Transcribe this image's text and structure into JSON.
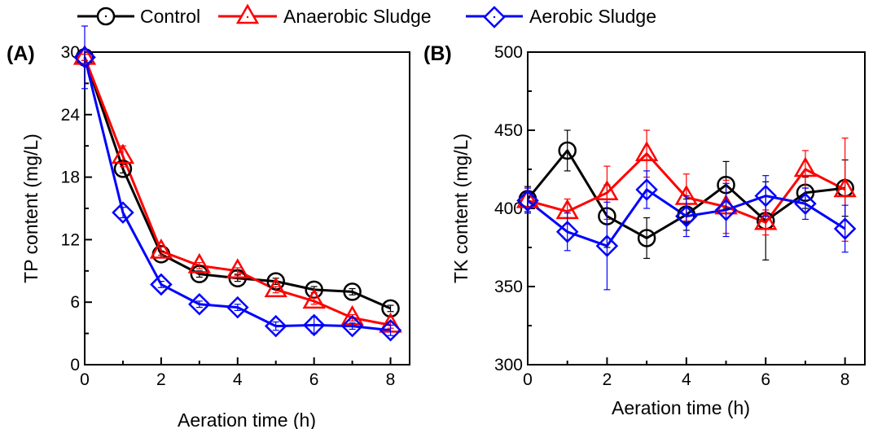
{
  "legend": {
    "items": [
      {
        "label": "Control",
        "color": "#000000",
        "marker": "circle"
      },
      {
        "label": "Anaerobic Sludge",
        "color": "#ff0000",
        "marker": "triangle"
      },
      {
        "label": "Aerobic Sludge",
        "color": "#0000ff",
        "marker": "diamond"
      }
    ],
    "placement": "top"
  },
  "chart_data": [
    {
      "type": "line",
      "panel_label": "(A)",
      "xlabel": "Aeration time (h)",
      "ylabel": "TP content (mg/L)",
      "xlim": [
        0,
        8.5
      ],
      "ylim": [
        0,
        30
      ],
      "xticks": [
        0,
        2,
        4,
        6,
        8
      ],
      "yticks": [
        0,
        6,
        12,
        18,
        24,
        30
      ],
      "grid": false,
      "x": [
        0,
        1,
        2,
        3,
        4,
        5,
        6,
        7,
        8
      ],
      "series": [
        {
          "name": "Control",
          "color": "#000000",
          "marker": "circle",
          "values": [
            29.5,
            18.8,
            10.6,
            8.7,
            8.3,
            8.0,
            7.2,
            7.0,
            5.4
          ],
          "errors": [
            0.3,
            0.4,
            0.3,
            0.3,
            0.3,
            0.3,
            0.3,
            0.3,
            0.3
          ]
        },
        {
          "name": "Anaerobic Sludge",
          "color": "#ff0000",
          "marker": "triangle",
          "values": [
            29.5,
            20.0,
            10.9,
            9.5,
            9.0,
            7.2,
            6.1,
            4.5,
            3.8
          ],
          "errors": [
            0.3,
            1.0,
            0.4,
            0.3,
            0.3,
            0.3,
            0.3,
            0.3,
            0.3
          ]
        },
        {
          "name": "Aerobic Sludge",
          "color": "#0000ff",
          "marker": "diamond",
          "values": [
            29.5,
            14.6,
            7.7,
            5.8,
            5.5,
            3.7,
            3.8,
            3.7,
            3.3
          ],
          "errors": [
            3.0,
            0.5,
            0.3,
            0.3,
            0.3,
            0.4,
            0.8,
            0.3,
            0.5
          ]
        }
      ]
    },
    {
      "type": "line",
      "panel_label": "(B)",
      "xlabel": "Aeration time (h)",
      "ylabel": "TK content (mg/L)",
      "xlim": [
        0,
        8.5
      ],
      "ylim": [
        300,
        500
      ],
      "xticks": [
        0,
        2,
        4,
        6,
        8
      ],
      "yticks": [
        300,
        350,
        400,
        450,
        500
      ],
      "grid": false,
      "x": [
        0,
        1,
        2,
        3,
        4,
        5,
        6,
        7,
        8
      ],
      "series": [
        {
          "name": "Control",
          "color": "#000000",
          "marker": "circle",
          "values": [
            406,
            437,
            395,
            381,
            396,
            415,
            392,
            410,
            413
          ],
          "errors": [
            8,
            13,
            20,
            13,
            10,
            15,
            25,
            10,
            18
          ]
        },
        {
          "name": "Anaerobic Sludge",
          "color": "#ff0000",
          "marker": "triangle",
          "values": [
            405,
            398,
            410,
            435,
            407,
            401,
            391,
            425,
            412
          ],
          "errors": [
            8,
            8,
            17,
            15,
            15,
            17,
            8,
            12,
            33
          ]
        },
        {
          "name": "Aerobic Sludge",
          "color": "#0000ff",
          "marker": "diamond",
          "values": [
            405,
            385,
            376,
            412,
            395,
            399,
            408,
            403,
            387
          ],
          "errors": [
            8,
            12,
            28,
            12,
            13,
            17,
            13,
            10,
            15
          ]
        }
      ]
    }
  ]
}
